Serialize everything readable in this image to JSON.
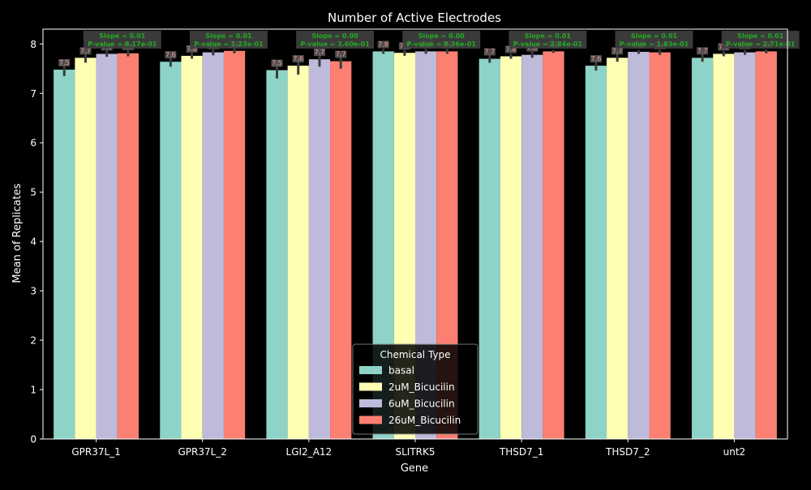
{
  "chart_data": {
    "type": "bar",
    "title": "Number of Active Electrodes",
    "xlabel": "Gene",
    "ylabel": "Mean of Replicates",
    "ylim": [
      0,
      8.3
    ],
    "yticks": [
      0,
      1,
      2,
      3,
      4,
      5,
      6,
      7,
      8
    ],
    "grid": false,
    "legend": {
      "title": "Chemical Type",
      "placement": "bottom-center"
    },
    "categories": [
      "GPR37L_1",
      "GPR37L_2",
      "LGI2_A12",
      "SLITRK5",
      "THSD7_1",
      "THSD7_2",
      "unt2"
    ],
    "series": [
      {
        "name": "basal",
        "color": "#8dd3c7",
        "values": [
          7.48,
          7.64,
          7.47,
          7.85,
          7.7,
          7.56,
          7.72
        ],
        "err": [
          0.13,
          0.1,
          0.17,
          0.05,
          0.08,
          0.1,
          0.08
        ],
        "labels": [
          "7.5",
          "7.6",
          "7.5",
          "7.8",
          "7.7",
          "7.6",
          "7.7"
        ]
      },
      {
        "name": "2uM_Bicucilin",
        "color": "#ffffb3",
        "values": [
          7.72,
          7.76,
          7.56,
          7.82,
          7.75,
          7.72,
          7.8
        ],
        "err": [
          0.1,
          0.06,
          0.18,
          0.06,
          0.05,
          0.08,
          0.05
        ],
        "labels": [
          "7.7",
          "7.8",
          "7.6",
          "7.8",
          "7.8",
          "7.7",
          "7.8"
        ]
      },
      {
        "name": "6uM_Bicucilin",
        "color": "#bebada",
        "values": [
          7.8,
          7.83,
          7.69,
          7.85,
          7.78,
          7.84,
          7.83
        ],
        "err": [
          0.06,
          0.06,
          0.15,
          0.05,
          0.06,
          0.04,
          0.05
        ],
        "labels": [
          "7.8",
          "7.8",
          "7.7",
          "7.8",
          "7.8",
          "7.8",
          "7.8"
        ]
      },
      {
        "name": "26uM_Bicucilin",
        "color": "#fb8072",
        "values": [
          7.81,
          7.86,
          7.65,
          7.85,
          7.85,
          7.83,
          7.85
        ],
        "err": [
          0.06,
          0.05,
          0.15,
          0.05,
          0.03,
          0.05,
          0.04
        ],
        "labels": [
          "7.8",
          "7.9",
          "7.7",
          "7.9",
          "7.8",
          "7.8",
          "7.9"
        ]
      }
    ],
    "annotations": [
      {
        "gene": "GPR37L_1",
        "line1": "Slope = 0.01",
        "line2": "P-value = 8.17e-01"
      },
      {
        "gene": "GPR37L_2",
        "line1": "Slope = 0.01",
        "line2": "P-value = 1.23e-01"
      },
      {
        "gene": "LGI2_A12",
        "line1": "Slope = 0.00",
        "line2": "P-value = 3.60e-01"
      },
      {
        "gene": "SLITRK5",
        "line1": "Slope = 0.00",
        "line2": "P-value = 9.36e-01"
      },
      {
        "gene": "THSD7_1",
        "line1": "Slope = 0.01",
        "line2": "P-value = 2.84e-01"
      },
      {
        "gene": "THSD7_2",
        "line1": "Slope = 0.01",
        "line2": "P-value = 1.83e-01"
      },
      {
        "gene": "unt2",
        "line1": "Slope = 0.01",
        "line2": "P-value = 2.71e-01"
      }
    ],
    "colors": {
      "background": "#000000",
      "axes": "#ffffff",
      "text": "#ffffff",
      "errorbar": "#3c3c3c",
      "annotation_text": "#22aa22",
      "annotation_box": "#404040",
      "value_label_bg": "#5a5a5a",
      "value_label_text": "#ff9a9a",
      "legend_bg": "#000000",
      "legend_border": "#8a8a8a"
    }
  }
}
